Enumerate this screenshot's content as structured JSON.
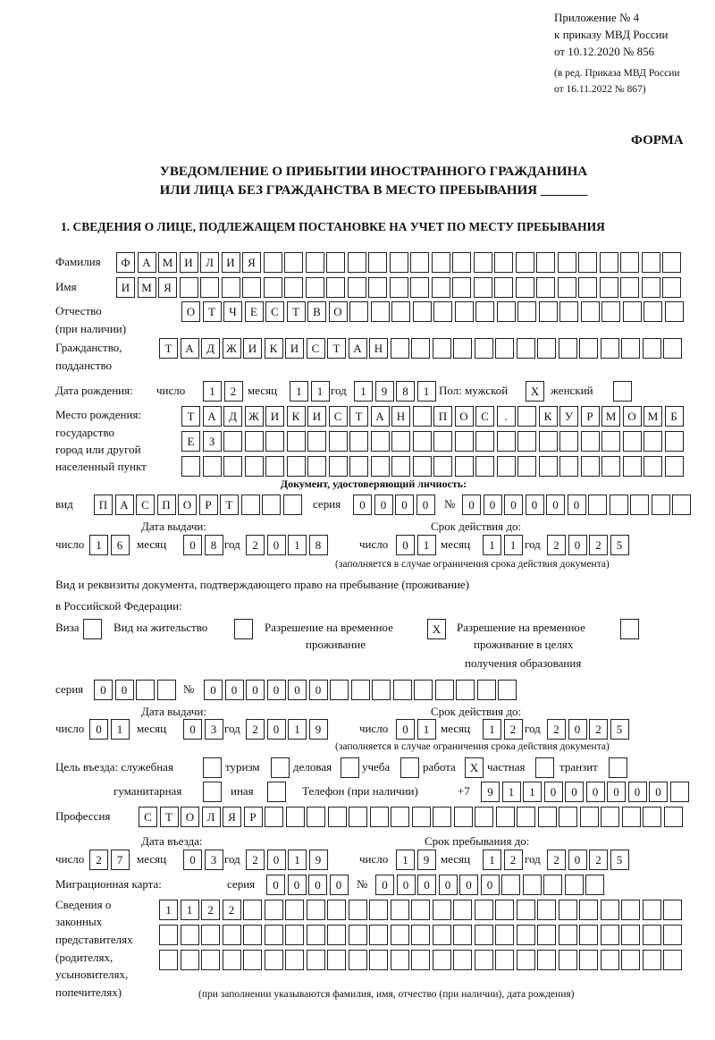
{
  "header": {
    "appendix": [
      "Приложение № 4",
      "к приказу МВД России",
      "от 10.12.2020 № 856"
    ],
    "edition": [
      "(в ред. Приказа МВД России",
      "от 16.11.2022 № 867)"
    ],
    "forma": "ФОРМА",
    "title1": "УВЕДОМЛЕНИЕ О ПРИБЫТИИ ИНОСТРАННОГО ГРАЖДАНИНА",
    "title2": "ИЛИ ЛИЦА БЕЗ ГРАЖДАНСТВА В МЕСТО ПРЕБЫВАНИЯ _______",
    "section1": "1. СВЕДЕНИЯ О ЛИЦЕ, ПОДЛЕЖАЩЕМ ПОСТАНОВКЕ НА УЧЕТ ПО МЕСТУ ПРЕБЫВАНИЯ"
  },
  "labels": {
    "surname": "Фамилия",
    "name": "Имя",
    "patronymic": "Отчество",
    "patronymic2": "(при наличии)",
    "citizenship": "Гражданство,",
    "citizenship2": "подданство",
    "birth_date": "Дата рождения:",
    "day": "число",
    "month": "месяц",
    "year": "год",
    "sex": "Пол: мужской",
    "female": "женский",
    "birth_place": [
      "Место рождения:",
      "государство",
      "город или другой",
      "населенный пункт"
    ],
    "id_doc": "Документ, удостоверяющий личность:",
    "kind": "вид",
    "series": "серия",
    "number": "№",
    "issue_date": "Дата выдачи:",
    "valid_until": "Срок действия до:",
    "valid_note": "(заполняется в случае ограничения срока действия документа)",
    "right_doc1": "Вид и реквизиты документа, подтверждающего право на пребывание (проживание)",
    "right_doc2": "в Российской Федерации:",
    "visa": "Виза",
    "residence": "Вид на жительство",
    "temp_res": "Разрешение на временное",
    "temp_res2": "проживание",
    "temp_edu": "Разрешение на временное",
    "temp_edu2": "проживание в целях",
    "temp_edu3": "получения образования",
    "purpose": "Цель въезда: служебная",
    "tourism": "туризм",
    "business": "деловая",
    "study": "учеба",
    "work": "работа",
    "private": "частная",
    "transit": "транзит",
    "humanitarian": "гуманитарная",
    "other": "иная",
    "phone": "Телефон (при наличии)",
    "phone_prefix": "+7",
    "profession": "Профессия",
    "entry_date": "Дата въезда:",
    "stay_until": "Срок пребывания до:",
    "migration_card": "Миграционная карта:",
    "reps": [
      "Сведения о",
      "законных",
      "представителях",
      "(родителях,",
      "усыновителях,",
      "попечителях)"
    ],
    "reps_note": "(при заполнении указываются фамилия, имя, отчество (при наличии), дата рождения)"
  },
  "fields": {
    "surname": [
      "Ф",
      "А",
      "М",
      "И",
      "Л",
      "И",
      "Я",
      "",
      "",
      "",
      "",
      "",
      "",
      "",
      "",
      "",
      "",
      "",
      "",
      "",
      "",
      "",
      "",
      "",
      "",
      "",
      ""
    ],
    "name": [
      "И",
      "М",
      "Я",
      "",
      "",
      "",
      "",
      "",
      "",
      "",
      "",
      "",
      "",
      "",
      "",
      "",
      "",
      "",
      "",
      "",
      "",
      "",
      "",
      "",
      "",
      "",
      ""
    ],
    "patronymic": [
      "О",
      "Т",
      "Ч",
      "Е",
      "С",
      "Т",
      "В",
      "О",
      "",
      "",
      "",
      "",
      "",
      "",
      "",
      "",
      "",
      "",
      "",
      "",
      "",
      "",
      "",
      ""
    ],
    "citizenship": [
      "Т",
      "А",
      "Д",
      "Ж",
      "И",
      "К",
      "И",
      "С",
      "Т",
      "А",
      "Н",
      "",
      "",
      "",
      "",
      "",
      "",
      "",
      "",
      "",
      "",
      "",
      "",
      "",
      ""
    ],
    "birth_day": [
      "1",
      "2"
    ],
    "birth_month": [
      "1",
      "1"
    ],
    "birth_year": [
      "1",
      "9",
      "8",
      "1"
    ],
    "sex_male": [
      "X"
    ],
    "sex_female": [
      ""
    ],
    "birth_place1": [
      "Т",
      "А",
      "Д",
      "Ж",
      "И",
      "К",
      "И",
      "С",
      "Т",
      "А",
      "Н",
      "",
      "П",
      "О",
      "С",
      ".",
      "",
      "К",
      "У",
      "Р",
      "М",
      "О",
      "М",
      "Б"
    ],
    "birth_place2": [
      "Е",
      "З",
      "",
      "",
      "",
      "",
      "",
      "",
      "",
      "",
      "",
      "",
      "",
      "",
      "",
      "",
      "",
      "",
      "",
      "",
      "",
      "",
      "",
      ""
    ],
    "birth_place3": [
      "",
      "",
      "",
      "",
      "",
      "",
      "",
      "",
      "",
      "",
      "",
      "",
      "",
      "",
      "",
      "",
      "",
      "",
      "",
      "",
      "",
      "",
      "",
      ""
    ],
    "id_kind": [
      "П",
      "А",
      "С",
      "П",
      "О",
      "Р",
      "Т",
      "",
      "",
      ""
    ],
    "id_series": [
      "0",
      "0",
      "0",
      "0"
    ],
    "id_number": [
      "0",
      "0",
      "0",
      "0",
      "0",
      "0",
      "",
      "",
      "",
      "",
      ""
    ],
    "id_issue_day": [
      "1",
      "6"
    ],
    "id_issue_month": [
      "0",
      "8"
    ],
    "id_issue_year": [
      "2",
      "0",
      "1",
      "8"
    ],
    "id_valid_day": [
      "0",
      "1"
    ],
    "id_valid_month": [
      "1",
      "1"
    ],
    "id_valid_year": [
      "2",
      "0",
      "2",
      "5"
    ],
    "visa": [
      ""
    ],
    "residence": [
      ""
    ],
    "temp_res": [
      "X"
    ],
    "temp_edu": [
      ""
    ],
    "rd_series": [
      "0",
      "0",
      "",
      ""
    ],
    "rd_number": [
      "0",
      "0",
      "0",
      "0",
      "0",
      "0",
      "",
      "",
      "",
      "",
      "",
      "",
      "",
      "",
      ""
    ],
    "rd_issue_day": [
      "0",
      "1"
    ],
    "rd_issue_month": [
      "0",
      "3"
    ],
    "rd_issue_year": [
      "2",
      "0",
      "1",
      "9"
    ],
    "rd_valid_day": [
      "0",
      "1"
    ],
    "rd_valid_month": [
      "1",
      "2"
    ],
    "rd_valid_year": [
      "2",
      "0",
      "2",
      "5"
    ],
    "p_official": [
      ""
    ],
    "p_tourism": [
      ""
    ],
    "p_business": [
      ""
    ],
    "p_study": [
      ""
    ],
    "p_work": [
      "X"
    ],
    "p_private": [
      ""
    ],
    "p_transit": [
      ""
    ],
    "p_humanitarian": [
      ""
    ],
    "p_other": [
      ""
    ],
    "phone": [
      "9",
      "1",
      "1",
      "0",
      "0",
      "0",
      "0",
      "0",
      "0",
      ""
    ],
    "profession": [
      "С",
      "Т",
      "О",
      "Л",
      "Я",
      "Р",
      "",
      "",
      "",
      "",
      "",
      "",
      "",
      "",
      "",
      "",
      "",
      "",
      "",
      "",
      "",
      "",
      "",
      "",
      "",
      ""
    ],
    "entry_day": [
      "2",
      "7"
    ],
    "entry_month": [
      "0",
      "3"
    ],
    "entry_year": [
      "2",
      "0",
      "1",
      "9"
    ],
    "stay_day": [
      "1",
      "9"
    ],
    "stay_month": [
      "1",
      "2"
    ],
    "stay_year": [
      "2",
      "0",
      "2",
      "5"
    ],
    "mc_series": [
      "0",
      "0",
      "0",
      "0"
    ],
    "mc_number": [
      "0",
      "0",
      "0",
      "0",
      "0",
      "0",
      "",
      "",
      "",
      "",
      ""
    ],
    "reps1": [
      "1",
      "1",
      "2",
      "2",
      "",
      "",
      "",
      "",
      "",
      "",
      "",
      "",
      "",
      "",
      "",
      "",
      "",
      "",
      "",
      "",
      "",
      "",
      "",
      "",
      ""
    ],
    "reps2": [
      "",
      "",
      "",
      "",
      "",
      "",
      "",
      "",
      "",
      "",
      "",
      "",
      "",
      "",
      "",
      "",
      "",
      "",
      "",
      "",
      "",
      "",
      "",
      "",
      ""
    ],
    "reps3": [
      "",
      "",
      "",
      "",
      "",
      "",
      "",
      "",
      "",
      "",
      "",
      "",
      "",
      "",
      "",
      "",
      "",
      "",
      "",
      "",
      "",
      "",
      "",
      "",
      ""
    ]
  }
}
